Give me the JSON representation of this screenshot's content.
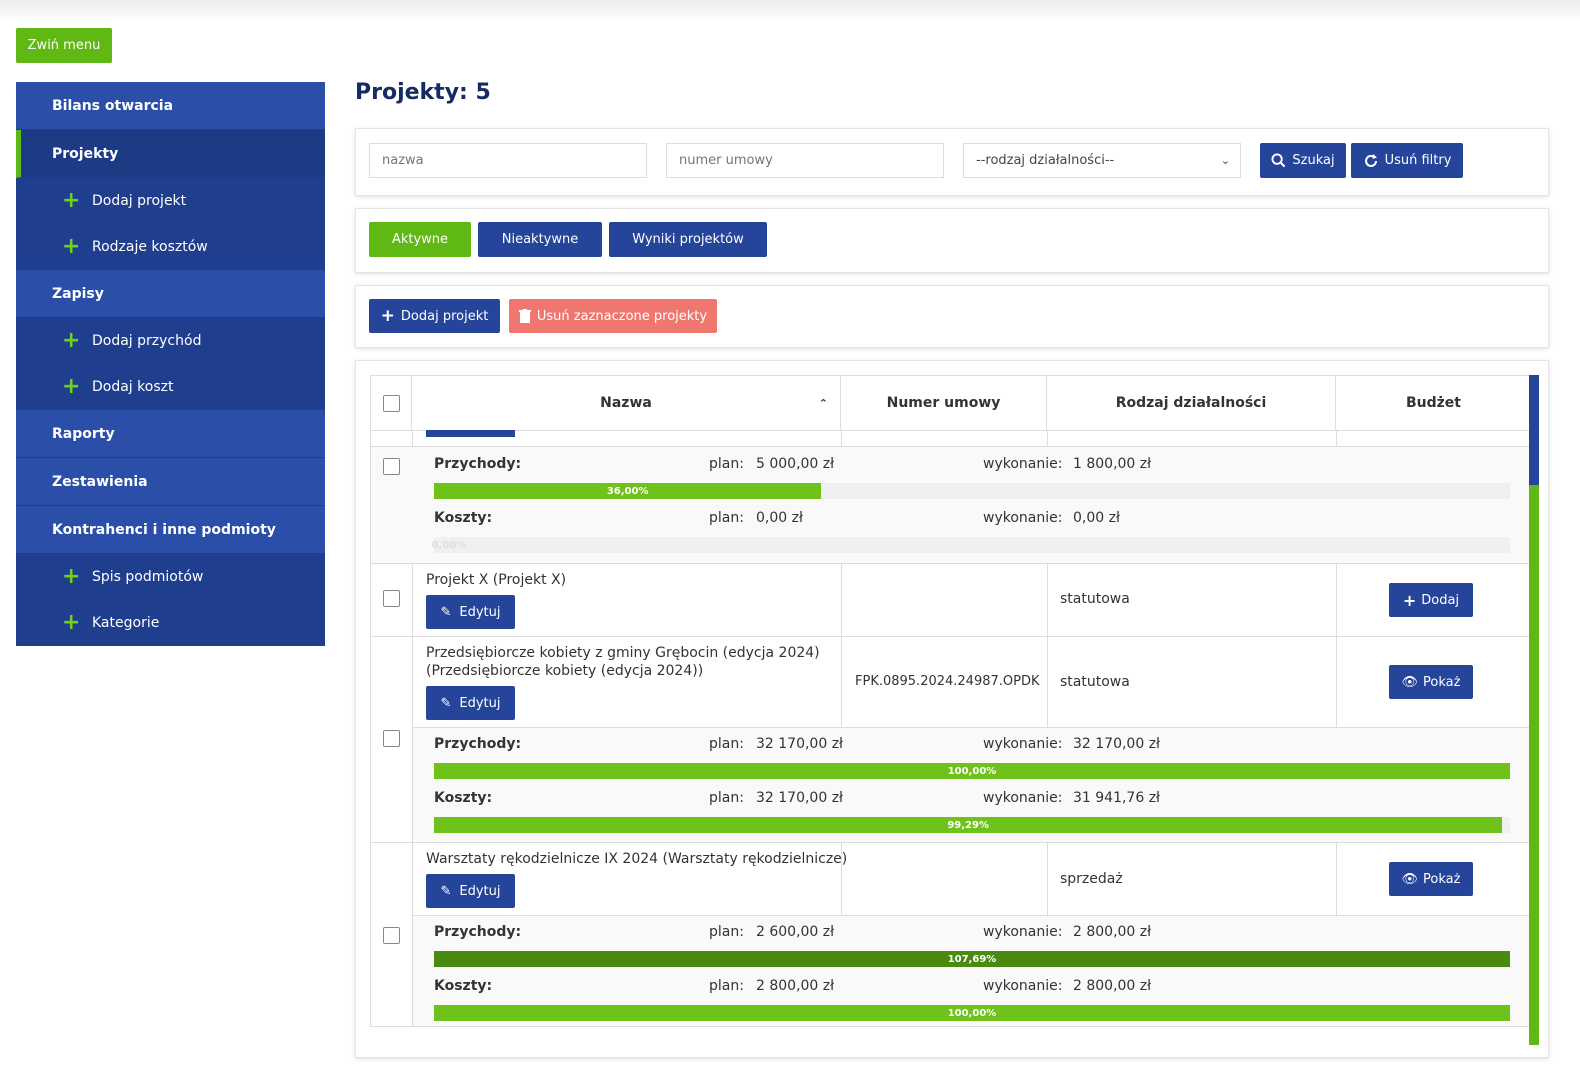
{
  "toolbar": {
    "collapse_label": "Zwiń menu"
  },
  "sidebar": {
    "items": [
      {
        "label": "Bilans otwarcia"
      },
      {
        "label": "Projekty"
      },
      {
        "label": "Dodaj projekt"
      },
      {
        "label": "Rodzaje kosztów"
      },
      {
        "label": "Zapisy"
      },
      {
        "label": "Dodaj przychód"
      },
      {
        "label": "Dodaj koszt"
      },
      {
        "label": "Raporty"
      },
      {
        "label": "Zestawienia"
      },
      {
        "label": "Kontrahenci i inne podmioty"
      },
      {
        "label": "Spis podmiotów"
      },
      {
        "label": "Kategorie"
      }
    ]
  },
  "page": {
    "title": "Projekty: 5"
  },
  "filters": {
    "name_placeholder": "nazwa",
    "contract_placeholder": "numer umowy",
    "activity_select": "--rodzaj działalności--",
    "search_label": "Szukaj",
    "clear_label": "Usuń filtry"
  },
  "tabs": {
    "active": "Aktywne",
    "inactive": "Nieaktywne",
    "results": "Wyniki projektów"
  },
  "actions": {
    "add_project": "Dodaj projekt",
    "delete_selected": "Usuń zaznaczone projekty"
  },
  "table": {
    "headers": {
      "name": "Nazwa",
      "contract": "Numer umowy",
      "activity": "Rodzaj działalności",
      "budget": "Budżet"
    },
    "labels": {
      "revenue": "Przychody:",
      "costs": "Koszty:",
      "plan": "plan:",
      "done": "wykonanie:",
      "edit": "Edytuj",
      "add": "Dodaj",
      "show": "Pokaż"
    },
    "rows": [
      {
        "revenue_plan": "5 000,00 zł",
        "revenue_done": "1 800,00 zł",
        "revenue_pct": "36,00%",
        "cost_plan": "0,00 zł",
        "cost_done": "0,00 zł",
        "cost_pct": "0,00%"
      },
      {
        "name": "Projekt X (Projekt X)",
        "contract": "",
        "activity": "statutowa"
      },
      {
        "name_line1": "Przedsiębiorcze kobiety z gminy Grębocin (edycja 2024)",
        "name_line2": "(Przedsiębiorcze kobiety (edycja 2024))",
        "contract": "FPK.0895.2024.24987.OPDK",
        "activity": "statutowa",
        "revenue_plan": "32 170,00 zł",
        "revenue_done": "32 170,00 zł",
        "revenue_pct": "100,00%",
        "cost_plan": "32 170,00 zł",
        "cost_done": "31 941,76 zł",
        "cost_pct": "99,29%"
      },
      {
        "name": "Warsztaty rękodzielnicze IX 2024 (Warsztaty rękodzielnicze)",
        "contract": "",
        "activity": "sprzedaż",
        "revenue_plan": "2 600,00 zł",
        "revenue_done": "2 800,00 zł",
        "revenue_pct": "107,69%",
        "cost_plan": "2 800,00 zł",
        "cost_done": "2 800,00 zł",
        "cost_pct": "100,00%"
      }
    ]
  },
  "colors": {
    "primary": "#24459a",
    "accent": "#5fb813",
    "danger": "#f0776f"
  }
}
